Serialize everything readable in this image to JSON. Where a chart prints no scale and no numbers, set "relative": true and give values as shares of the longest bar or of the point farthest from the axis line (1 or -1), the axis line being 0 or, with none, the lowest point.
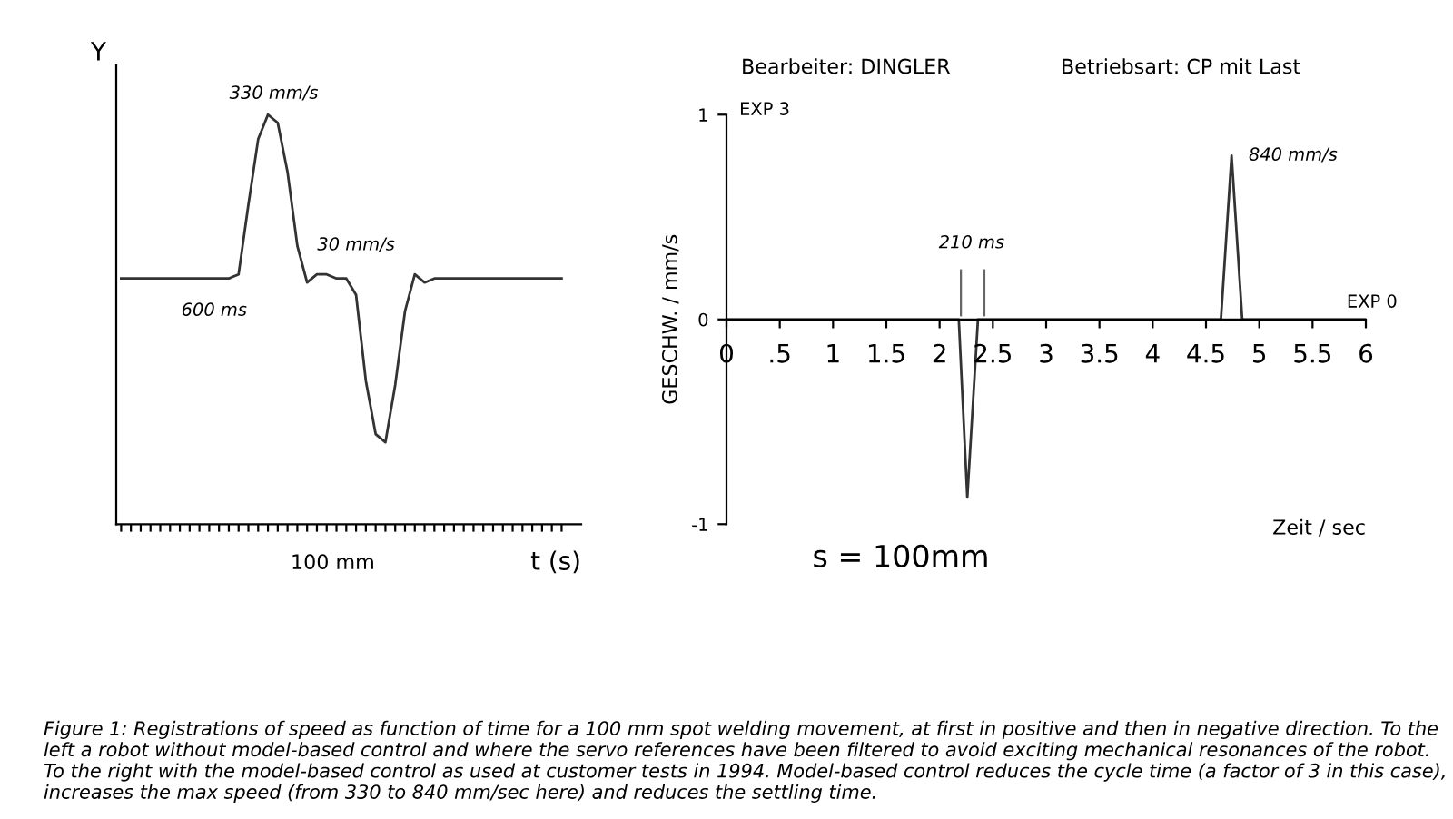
{
  "chart_data": [
    {
      "type": "line",
      "relative": true,
      "xlabel": "t (s)",
      "ylabel": "Y",
      "color": "#333333",
      "categories": [
        null,
        null,
        null,
        null,
        null,
        null,
        null,
        null,
        null,
        null,
        null,
        null,
        null,
        null,
        null,
        null,
        null,
        null,
        null,
        null,
        null,
        null,
        null,
        null,
        null,
        null,
        null,
        null,
        null,
        null,
        null,
        null,
        null,
        null,
        null,
        null,
        null,
        null,
        null,
        null,
        null,
        null,
        null,
        null,
        null,
        null
      ],
      "values": [
        0.6,
        0.6,
        0.6,
        0.6,
        0.6,
        0.6,
        0.6,
        0.6,
        0.6,
        0.6,
        0.6,
        0.6,
        0.61,
        0.78,
        0.94,
        1.0,
        0.98,
        0.86,
        0.68,
        0.59,
        0.61,
        0.61,
        0.6,
        0.6,
        0.56,
        0.35,
        0.22,
        0.2,
        0.34,
        0.52,
        0.61,
        0.59,
        0.6,
        0.6,
        0.6,
        0.6,
        0.6,
        0.6,
        0.6,
        0.6,
        0.6,
        0.6,
        0.6,
        0.6,
        0.6,
        0.6
      ],
      "annotations": [
        "330 mm/s",
        "30 mm/s",
        "600 ms",
        "100 mm"
      ]
    },
    {
      "type": "line",
      "ylabel": "GESCHW. / mm/s",
      "xlabel": "Zeit / sec",
      "color": "#333333",
      "x": [
        0,
        2.18,
        2.26,
        2.36,
        4.64,
        4.74,
        4.84,
        6
      ],
      "values": [
        0,
        0,
        -0.87,
        0,
        0,
        0.8,
        0,
        0
      ],
      "xlim": [
        0,
        6
      ],
      "ylim": [
        -1,
        1
      ],
      "xticks": [
        0,
        {
          "value": 0.5,
          "label": ".5"
        },
        1,
        1.5,
        2,
        2.5,
        3,
        3.5,
        4,
        4.5,
        5,
        5.5,
        6
      ],
      "yticks": [
        -1,
        0,
        1
      ],
      "ref_lines": [
        {
          "axis": "x",
          "value": 2.2,
          "label": null
        },
        {
          "axis": "x",
          "value": 2.42,
          "label": null
        }
      ],
      "annotations": [
        "EXP 3",
        "EXP 0",
        "210 ms",
        "840 mm/s",
        "Bearbeiter: DINGLER",
        "Betriebsart: CP mit Last",
        "s = 100mm",
        "Figure 1: Registrations of speed as function of time for a 100 mm spot welding movement, at first in positive and then in negative direction. To the left a robot without model-based control and where the servo references have been filtered to avoid exciting mechanical resonances of the robot. To the right with the model-based control as used at customer tests in 1994. Model-based control reduces the cycle time (a factor of 3 in this case), increases the max speed (from 330 to 840 mm/sec here) and reduces the settling time."
      ]
    }
  ]
}
